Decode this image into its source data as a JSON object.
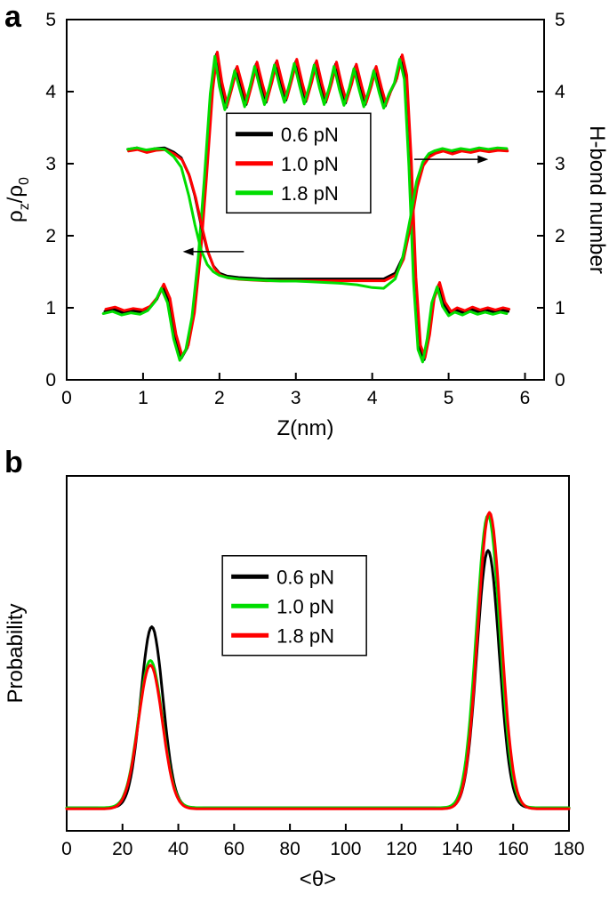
{
  "panels": [
    {
      "label": "a"
    },
    {
      "label": "b"
    }
  ],
  "chart_data": [
    {
      "id": "panel-a",
      "type": "line",
      "xlabel": "Z(nm)",
      "ylabel_left_parts": [
        {
          "t": "ρ",
          "sub": false
        },
        {
          "t": "z",
          "sub": true
        },
        {
          "t": "/ρ",
          "sub": false
        },
        {
          "t": "0",
          "sub": true
        }
      ],
      "ylabel_right": "H-bond number",
      "xlim": [
        0,
        6.25
      ],
      "xticks": [
        0,
        1,
        2,
        3,
        4,
        5,
        6
      ],
      "ylim": [
        0,
        5
      ],
      "yticks": [
        0,
        1,
        2,
        3,
        4,
        5
      ],
      "yticks_right": [
        0,
        1,
        2,
        3,
        4,
        5
      ],
      "grid": false,
      "legend": {
        "pos_f": [
          0.335,
          0.26
        ],
        "entries": [
          {
            "label": "0.6 pN",
            "color": "#000000"
          },
          {
            "label": "1.0 pN",
            "color": "#ff0000"
          },
          {
            "label": "1.8 pN",
            "color": "#00dd00"
          }
        ]
      },
      "annotations": [
        {
          "type": "arrow",
          "x1": 2.32,
          "y1": 1.78,
          "x2": 1.52,
          "y2": 1.78
        },
        {
          "type": "arrow",
          "x1": 4.55,
          "y1": 3.06,
          "x2": 5.52,
          "y2": 3.06
        }
      ],
      "series": [
        {
          "name": "density-0.6pN",
          "force": "0.6 pN",
          "quantity": "density",
          "color": "#000000",
          "x": [
            0.5,
            0.62,
            0.74,
            0.86,
            0.98,
            1.08,
            1.18,
            1.26,
            1.34,
            1.42,
            1.5,
            1.58,
            1.66,
            1.74,
            1.82,
            1.9,
            1.96,
            2.02,
            2.09,
            2.16,
            2.22,
            2.29,
            2.35,
            2.42,
            2.48,
            2.55,
            2.61,
            2.68,
            2.74,
            2.81,
            2.87,
            2.94,
            3.0,
            3.07,
            3.13,
            3.2,
            3.26,
            3.33,
            3.39,
            3.46,
            3.52,
            3.59,
            3.65,
            3.72,
            3.78,
            3.85,
            3.91,
            3.98,
            4.04,
            4.11,
            4.17,
            4.24,
            4.31,
            4.38,
            4.44,
            4.5,
            4.56,
            4.62,
            4.68,
            4.74,
            4.8,
            4.87,
            4.94,
            5.02,
            5.1,
            5.2,
            5.3,
            5.4,
            5.5,
            5.6,
            5.7,
            5.78
          ],
          "y": [
            0.95,
            0.98,
            0.93,
            0.96,
            0.94,
            0.99,
            1.12,
            1.3,
            1.1,
            0.6,
            0.3,
            0.45,
            0.9,
            1.7,
            2.8,
            4.0,
            4.52,
            4.1,
            3.78,
            4.05,
            4.32,
            4.05,
            3.82,
            4.1,
            4.38,
            4.08,
            3.85,
            4.12,
            4.4,
            4.1,
            3.88,
            4.15,
            4.42,
            4.1,
            3.86,
            4.12,
            4.4,
            4.08,
            3.85,
            4.1,
            4.38,
            4.06,
            3.84,
            4.08,
            4.35,
            4.05,
            3.82,
            4.06,
            4.32,
            4.02,
            3.8,
            4.0,
            4.15,
            4.48,
            4.2,
            3.0,
            1.4,
            0.45,
            0.28,
            0.6,
            1.1,
            1.32,
            1.05,
            0.92,
            0.97,
            0.93,
            0.98,
            0.94,
            0.97,
            0.94,
            0.97,
            0.95
          ]
        },
        {
          "name": "density-1.0pN",
          "force": "1.0 pN",
          "quantity": "density",
          "color": "#ff0000",
          "ref": "density-0.6pN",
          "dx": 0.012,
          "dy": 0.03
        },
        {
          "name": "density-1.8pN",
          "force": "1.8 pN",
          "quantity": "density",
          "color": "#00dd00",
          "ref": "density-0.6pN",
          "dx": -0.02,
          "dy": -0.03
        },
        {
          "name": "hbond-0.6pN",
          "force": "0.6 pN",
          "quantity": "h-bond number",
          "color": "#000000",
          "x": [
            0.8,
            0.92,
            1.04,
            1.16,
            1.28,
            1.4,
            1.5,
            1.6,
            1.68,
            1.76,
            1.84,
            1.92,
            2.0,
            2.1,
            2.25,
            2.4,
            2.6,
            2.8,
            3.0,
            3.2,
            3.4,
            3.6,
            3.8,
            4.0,
            4.15,
            4.3,
            4.4,
            4.5,
            4.58,
            4.66,
            4.74,
            4.82,
            4.92,
            5.04,
            5.16,
            5.28,
            5.4,
            5.52,
            5.64,
            5.76
          ],
          "y": [
            3.2,
            3.22,
            3.18,
            3.21,
            3.22,
            3.16,
            3.08,
            2.85,
            2.55,
            2.15,
            1.8,
            1.58,
            1.48,
            1.44,
            1.42,
            1.41,
            1.4,
            1.4,
            1.4,
            1.4,
            1.4,
            1.4,
            1.4,
            1.4,
            1.4,
            1.48,
            1.7,
            2.2,
            2.7,
            3.0,
            3.12,
            3.17,
            3.2,
            3.16,
            3.2,
            3.18,
            3.21,
            3.19,
            3.21,
            3.2
          ]
        },
        {
          "name": "hbond-1.0pN",
          "force": "1.0 pN",
          "quantity": "h-bond number",
          "color": "#ff0000",
          "ref": "hbond-0.6pN",
          "dx": 0.01,
          "dy": -0.025
        },
        {
          "name": "hbond-1.8pN",
          "force": "1.8 pN",
          "quantity": "h-bond number",
          "color": "#00dd00",
          "x": [
            0.8,
            0.92,
            1.04,
            1.16,
            1.28,
            1.4,
            1.5,
            1.6,
            1.68,
            1.76,
            1.84,
            1.92,
            2.0,
            2.1,
            2.25,
            2.4,
            2.6,
            2.8,
            3.0,
            3.2,
            3.4,
            3.6,
            3.8,
            4.0,
            4.15,
            4.3,
            4.4,
            4.5,
            4.58,
            4.66,
            4.74,
            4.82,
            4.92,
            5.04,
            5.16,
            5.28,
            5.4,
            5.52,
            5.64,
            5.76
          ],
          "y": [
            3.2,
            3.22,
            3.19,
            3.21,
            3.2,
            3.1,
            2.95,
            2.55,
            2.15,
            1.8,
            1.6,
            1.5,
            1.45,
            1.42,
            1.4,
            1.39,
            1.38,
            1.37,
            1.37,
            1.36,
            1.35,
            1.34,
            1.32,
            1.28,
            1.27,
            1.4,
            1.7,
            2.25,
            2.75,
            3.02,
            3.14,
            3.18,
            3.21,
            3.18,
            3.21,
            3.19,
            3.22,
            3.2,
            3.22,
            3.21
          ]
        }
      ]
    },
    {
      "id": "panel-b",
      "type": "line",
      "xlabel": "<θ>",
      "ylabel_left_parts": [
        {
          "t": "Probability",
          "sub": false
        }
      ],
      "ylabel_right": null,
      "xlim": [
        0,
        180
      ],
      "xticks": [
        0,
        20,
        40,
        60,
        80,
        100,
        120,
        140,
        160,
        180
      ],
      "ylim": [
        0,
        1
      ],
      "yticks": [],
      "yticks_right": [],
      "grid": false,
      "legend": {
        "pos_f": [
          0.31,
          0.225
        ],
        "entries": [
          {
            "label": "0.6 pN",
            "color": "#000000"
          },
          {
            "label": "1.0 pN",
            "color": "#00dd00"
          },
          {
            "label": "1.8 pN",
            "color": "#ff0000"
          }
        ]
      },
      "annotations": [],
      "series": [
        {
          "name": "prob-0.6pN",
          "force": "0.6 pN",
          "color": "#000000",
          "baseline": 0.065,
          "peaks": [
            {
              "c": 30.5,
              "h": 0.51,
              "s": 4.0
            },
            {
              "c": 151.0,
              "h": 0.725,
              "s": 4.0
            }
          ]
        },
        {
          "name": "prob-1.0pN",
          "force": "1.0 pN",
          "color": "#00dd00",
          "baseline": 0.065,
          "peaks": [
            {
              "c": 30.0,
              "h": 0.415,
              "s": 4.3
            },
            {
              "c": 151.0,
              "h": 0.825,
              "s": 4.2
            }
          ]
        },
        {
          "name": "prob-1.8pN",
          "force": "1.8 pN",
          "color": "#ff0000",
          "baseline": 0.062,
          "peaks": [
            {
              "c": 30.0,
              "h": 0.405,
              "s": 4.3
            },
            {
              "c": 151.5,
              "h": 0.835,
              "s": 4.2
            }
          ]
        }
      ]
    }
  ]
}
